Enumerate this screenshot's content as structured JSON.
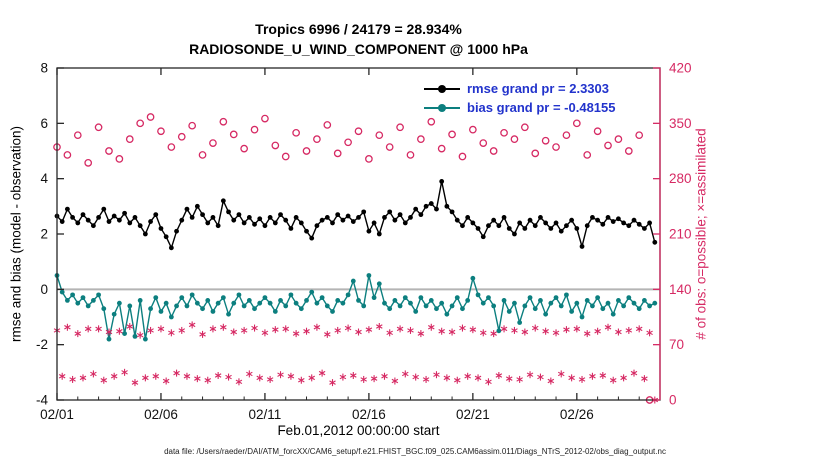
{
  "figure": {
    "title_line1": "Tropics 6996 / 24179 = 28.934%",
    "title_line2": "RADIOSONDE_U_WIND_COMPONENT @ 1000 hPa",
    "xlabel": "Feb.01,2012 00:00:00 start",
    "ylabel_left": "rmse and bias (model - observation)",
    "ylabel_right": "# of obs: o=possible; ×=assimilated",
    "caption": "data file: /Users/raeder/DAI/ATM_forcXX/CAM6_setup/f.e21.FHIST_BGC.f09_025.CAM6assim.011/Diags_NTrS_2012-02/obs_diag_output.nc",
    "legend": [
      {
        "label": "rmse grand pr = 2.3303",
        "color": "#000000"
      },
      {
        "label": "bias grand pr = -0.48155",
        "color": "#0c7f7f"
      }
    ],
    "colors": {
      "rmse": "#000000",
      "bias": "#0c7f7f",
      "obs": "#d62963",
      "zero_line": "#b4b4b4",
      "legend_text": "#2233cc",
      "axis": "#262626"
    }
  },
  "chart_data": {
    "type": "line",
    "title": "Tropics 6996 / 24179 = 28.934%",
    "subtitle": "RADIOSONDE_U_WIND_COMPONENT @ 1000 hPa",
    "xlabel": "Feb.01,2012 00:00:00 start",
    "x_axis": {
      "range_days": [
        1,
        30
      ],
      "ticks_days": [
        1,
        6,
        11,
        16,
        21,
        26
      ],
      "tick_labels": [
        "02/01",
        "02/06",
        "02/11",
        "02/16",
        "02/21",
        "02/26"
      ],
      "minor_tick_every_days": 1
    },
    "y_left": {
      "label": "rmse and bias (model - observation)",
      "range": [
        -4,
        8
      ],
      "ticks": [
        -4,
        -2,
        0,
        2,
        4,
        6,
        8
      ]
    },
    "y_right": {
      "label": "# of obs: o=possible; ×=assimilated",
      "range": [
        0,
        420
      ],
      "ticks": [
        0,
        70,
        140,
        210,
        280,
        350,
        420
      ]
    },
    "x_start_day": 1.0,
    "x_step_days": 0.25,
    "zero_reference_line": 0,
    "grid": false,
    "legend_position": "top-right-inside",
    "series": [
      {
        "name": "rmse",
        "axis": "left",
        "marker": "dot",
        "line": true,
        "color": "#000000",
        "grand_value": 2.3303,
        "values": [
          2.65,
          2.45,
          2.9,
          2.6,
          2.4,
          2.7,
          2.5,
          2.3,
          2.6,
          2.9,
          2.45,
          2.65,
          2.5,
          2.75,
          2.4,
          2.6,
          2.3,
          2.0,
          2.45,
          2.7,
          2.2,
          1.9,
          1.5,
          2.1,
          2.5,
          2.9,
          2.6,
          3.0,
          2.7,
          2.4,
          2.6,
          2.3,
          3.2,
          2.8,
          2.5,
          2.7,
          2.4,
          2.6,
          2.35,
          2.55,
          2.3,
          2.6,
          2.4,
          2.7,
          2.5,
          2.2,
          2.6,
          2.4,
          2.1,
          1.85,
          2.3,
          2.5,
          2.6,
          2.4,
          2.7,
          2.5,
          2.65,
          2.45,
          2.6,
          2.8,
          2.1,
          2.4,
          2.0,
          2.6,
          2.8,
          2.5,
          2.7,
          2.4,
          2.6,
          2.9,
          2.7,
          3.0,
          3.1,
          2.9,
          3.9,
          3.0,
          2.8,
          2.5,
          2.3,
          2.6,
          2.4,
          2.2,
          1.9,
          2.3,
          2.5,
          2.3,
          2.6,
          2.2,
          2.0,
          2.4,
          2.2,
          2.5,
          2.3,
          2.6,
          2.4,
          2.2,
          2.4,
          2.1,
          2.3,
          2.5,
          2.2,
          1.55,
          2.3,
          2.6,
          2.5,
          2.35,
          2.6,
          2.45,
          2.55,
          2.4,
          2.3,
          2.5,
          2.35,
          2.2,
          2.4,
          1.7
        ]
      },
      {
        "name": "bias",
        "axis": "left",
        "marker": "dot",
        "line": true,
        "color": "#0c7f7f",
        "grand_value": -0.48155,
        "values": [
          0.5,
          -0.1,
          -0.4,
          -0.2,
          -0.5,
          -0.3,
          -0.6,
          -0.4,
          -0.2,
          -0.7,
          -1.8,
          -0.9,
          -0.5,
          -1.6,
          -0.6,
          -1.7,
          -0.4,
          -1.8,
          -0.7,
          -0.3,
          -0.8,
          -0.5,
          -1.0,
          -0.6,
          -0.3,
          -0.6,
          -0.2,
          -0.5,
          -0.7,
          -0.4,
          -0.8,
          -0.5,
          -0.3,
          -0.9,
          -0.5,
          -0.2,
          -0.6,
          -0.4,
          -0.7,
          -0.5,
          -0.3,
          -0.5,
          -0.8,
          -0.4,
          -0.6,
          -0.2,
          -0.5,
          -0.7,
          -0.4,
          -0.1,
          -0.5,
          -0.3,
          -0.6,
          -0.8,
          -0.4,
          -0.5,
          -0.2,
          0.3,
          -0.4,
          -0.6,
          0.5,
          -0.3,
          0.2,
          -0.5,
          -0.7,
          -0.4,
          -0.6,
          -0.3,
          -0.5,
          -0.8,
          -0.3,
          -0.6,
          -0.4,
          -0.7,
          -0.5,
          -0.9,
          -0.6,
          -0.3,
          -0.7,
          -0.4,
          0.4,
          -0.2,
          -0.5,
          -0.3,
          -0.6,
          -1.5,
          -0.4,
          -0.8,
          -0.5,
          -1.2,
          -0.6,
          -0.3,
          -0.7,
          -0.4,
          -0.9,
          -0.5,
          -0.3,
          -0.6,
          -0.2,
          -0.8,
          -0.5,
          -1.0,
          -0.4,
          -0.6,
          -0.3,
          -0.7,
          -0.5,
          -0.9,
          -0.4,
          -0.6,
          -0.3,
          -0.5,
          -0.7,
          -0.4,
          -0.6,
          -0.5
        ]
      },
      {
        "name": "possible-obs",
        "axis": "right",
        "marker": "circle",
        "line": false,
        "color": "#d62963",
        "x_step_days": 0.5,
        "values": [
          320,
          310,
          335,
          300,
          345,
          315,
          305,
          330,
          350,
          358,
          340,
          320,
          333,
          347,
          310,
          325,
          352,
          336,
          318,
          342,
          356,
          322,
          308,
          338,
          315,
          330,
          348,
          312,
          326,
          340,
          305,
          335,
          320,
          345,
          310,
          330,
          352,
          318,
          336,
          308,
          342,
          325,
          315,
          338,
          330,
          345,
          312,
          328,
          320,
          335,
          350,
          310,
          340,
          322,
          330,
          315,
          335,
          0
        ]
      },
      {
        "name": "assimilated-obs",
        "axis": "right",
        "marker": "asterisk",
        "line": false,
        "color": "#d62963",
        "values": [
          88,
          30,
          92,
          26,
          84,
          28,
          90,
          33,
          90,
          25,
          86,
          30,
          87,
          35,
          93,
          22,
          82,
          28,
          88,
          30,
          90,
          24,
          85,
          34,
          88,
          30,
          95,
          27,
          83,
          25,
          90,
          31,
          92,
          29,
          86,
          23,
          88,
          33,
          91,
          28,
          85,
          26,
          89,
          32,
          90,
          30,
          84,
          25,
          87,
          28,
          92,
          34,
          83,
          22,
          88,
          29,
          91,
          31,
          86,
          26,
          89,
          27,
          93,
          30,
          85,
          24,
          90,
          33,
          88,
          29,
          84,
          26,
          92,
          32,
          87,
          28,
          86,
          25,
          91,
          30,
          89,
          28,
          85,
          23,
          84,
          31,
          90,
          27,
          88,
          26,
          86,
          32,
          91,
          29,
          87,
          24,
          85,
          33,
          89,
          28,
          90,
          26,
          84,
          30,
          87,
          31,
          92,
          25,
          86,
          28,
          88,
          34,
          90,
          27,
          85,
          0
        ]
      }
    ]
  }
}
